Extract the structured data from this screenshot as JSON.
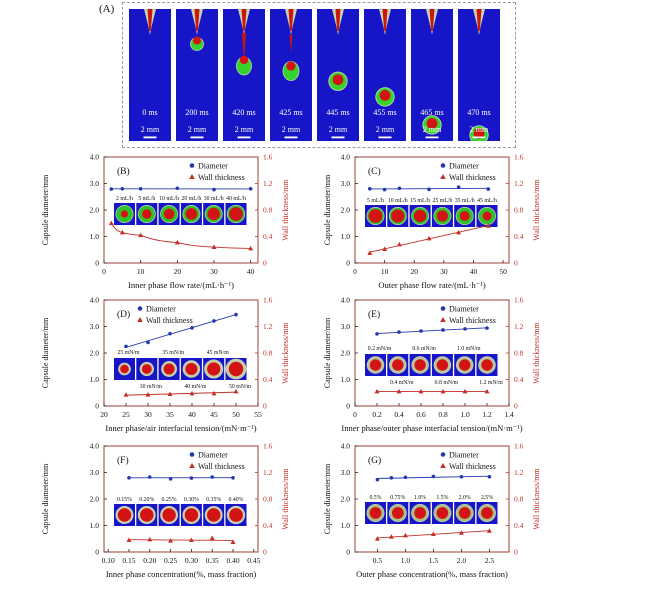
{
  "figure": {
    "panel_a": {
      "label": "(A)",
      "scale_label": "2 mm",
      "frames": [
        {
          "time": "0 ms",
          "stage": "empty"
        },
        {
          "time": "200 ms",
          "stage": "pendant"
        },
        {
          "time": "420 ms",
          "stage": "stretch"
        },
        {
          "time": "425 ms",
          "stage": "neck"
        },
        {
          "time": "445 ms",
          "stage": "free",
          "y": 0.52
        },
        {
          "time": "455 ms",
          "stage": "free",
          "y": 0.66
        },
        {
          "time": "465 ms",
          "stage": "free",
          "y": 0.91
        },
        {
          "time": "470 ms",
          "stage": "free",
          "y": 1.0
        }
      ]
    },
    "ylabel_left": "Capsule diameter/mm",
    "ylabel_right": "Wall thickness/mm",
    "legend": {
      "diameter": "Diameter",
      "wall": "Wall thickness"
    },
    "yticks_left": {
      "values": [
        0,
        1,
        2,
        3,
        4
      ],
      "labels": [
        "0",
        "1.0",
        "2.0",
        "3.0",
        "4.0"
      ]
    },
    "yticks_right": {
      "values": [
        0,
        0.4,
        0.8,
        1.2,
        1.6
      ],
      "labels": [
        "0",
        "0.4",
        "0.8",
        "1.2",
        "1.6"
      ]
    },
    "ylim_left": [
      0,
      4
    ],
    "ylim_right": [
      0,
      1.6
    ]
  },
  "chart_data": [
    {
      "type": "scatter",
      "letter": "(B)",
      "xlabel": "Inner phase flow rate/(mL·h⁻¹)",
      "xlim": [
        0,
        42
      ],
      "xticks": [
        0,
        10,
        20,
        30,
        40
      ],
      "xtick_labels": [
        "0",
        "10",
        "20",
        "30",
        "40"
      ],
      "x": [
        2,
        5,
        10,
        20,
        30,
        40
      ],
      "diameter": [
        2.79,
        2.8,
        2.8,
        2.82,
        2.77,
        2.8
      ],
      "wall": [
        0.6,
        0.46,
        0.42,
        0.31,
        0.24,
        0.22
      ],
      "wall_fit": "curve",
      "legend_pos": "right",
      "inset": {
        "labels_top": [
          "2 mL/h",
          "5 mL/h",
          "10 mL/h",
          "20 mL/h",
          "30 mL/h",
          "40 mL/h"
        ],
        "labels_bottom": [],
        "y": 46,
        "ring": "#2fc32a",
        "cores": [
          0.42,
          0.55,
          0.62,
          0.68,
          0.72,
          0.78
        ],
        "radii": [
          8.6,
          8.6,
          8.6,
          8.6,
          8.6,
          8.8
        ]
      }
    },
    {
      "type": "scatter",
      "letter": "(C)",
      "xlabel": "Outer phase flow rate/(mL·h⁻¹)",
      "xlim": [
        0,
        52
      ],
      "xticks": [
        0,
        10,
        20,
        30,
        40,
        50
      ],
      "xtick_labels": [
        "0",
        "10",
        "20",
        "30",
        "40",
        "50"
      ],
      "x": [
        5,
        10,
        15,
        25,
        35,
        45
      ],
      "diameter": [
        2.8,
        2.77,
        2.82,
        2.78,
        2.86,
        2.79
      ],
      "wall": [
        0.15,
        0.21,
        0.28,
        0.37,
        0.46,
        0.56
      ],
      "wall_fit": "line",
      "legend_pos": "right",
      "inset": {
        "labels_top": [
          "5 mL/h",
          "10 mL/h",
          "15 mL/h",
          "25 mL/h",
          "35 mL/h",
          "45 mL/h"
        ],
        "labels_bottom": [],
        "y": 48,
        "ring": "#2fc32a",
        "cores": [
          0.8,
          0.77,
          0.72,
          0.65,
          0.58,
          0.52
        ],
        "radii": [
          8.6,
          8.6,
          8.6,
          8.6,
          8.6,
          8.6
        ]
      }
    },
    {
      "type": "scatter",
      "letter": "(D)",
      "xlabel": "Inner phase/air interfacial tension/(mN·m⁻¹)",
      "xlim": [
        20,
        55
      ],
      "xticks": [
        20,
        25,
        30,
        35,
        40,
        45,
        50,
        55
      ],
      "xtick_labels": [
        "20",
        "25",
        "30",
        "35",
        "40",
        "45",
        "50",
        "55"
      ],
      "x": [
        25,
        30,
        35,
        40,
        45,
        50
      ],
      "diameter": [
        2.25,
        2.4,
        2.73,
        2.95,
        3.21,
        3.45
      ],
      "wall": [
        0.17,
        0.17,
        0.18,
        0.19,
        0.19,
        0.22
      ],
      "wall_fit": "line",
      "legend_pos": "left",
      "inset": {
        "labels_top": [
          "25 mN/m",
          "35 mN/m",
          "45 mN/m"
        ],
        "labels_bottom": [
          "30 mN/m",
          "40 mN/m",
          "50 mN/m"
        ],
        "y": 58,
        "ring": "#c4cda6",
        "cores": [
          0.72,
          0.72,
          0.72,
          0.72,
          0.72,
          0.72
        ],
        "radii": [
          6.0,
          6.8,
          7.6,
          8.4,
          9.2,
          10.0
        ]
      }
    },
    {
      "type": "scatter",
      "letter": "(E)",
      "xlabel": "Inner phase/outer phase interfacial tension/(mN·m⁻¹)",
      "xlim": [
        0,
        1.4
      ],
      "xticks": [
        0,
        0.2,
        0.4,
        0.6,
        0.8,
        1.0,
        1.2,
        1.4
      ],
      "xtick_labels": [
        "0",
        "0.2",
        "0.4",
        "0.6",
        "0.8",
        "1.0",
        "1.2",
        "1.4"
      ],
      "x": [
        0.2,
        0.4,
        0.6,
        0.8,
        1.0,
        1.2
      ],
      "diameter": [
        2.72,
        2.79,
        2.83,
        2.87,
        2.91,
        2.94
      ],
      "wall": [
        0.22,
        0.22,
        0.22,
        0.22,
        0.22,
        0.22
      ],
      "wall_fit": "line",
      "legend_pos": "right",
      "inset": {
        "labels_top": [
          "0.2 mN/m",
          "0.6 mN/m",
          "1.0 mN/m"
        ],
        "labels_bottom": [
          "0.4 mN/m",
          "0.8 mN/m",
          "1.2 mN/m"
        ],
        "y": 54,
        "ring": "#b9c59b",
        "cores": [
          0.68,
          0.68,
          0.68,
          0.68,
          0.68,
          0.68
        ],
        "radii": [
          8.4,
          8.4,
          8.4,
          8.4,
          8.4,
          8.4
        ]
      }
    },
    {
      "type": "scatter",
      "letter": "(F)",
      "xlabel": "Inner phase concentration(%, mass fraction)",
      "xlim": [
        0.09,
        0.46
      ],
      "xticks": [
        0.1,
        0.15,
        0.2,
        0.25,
        0.3,
        0.35,
        0.4,
        0.45
      ],
      "xtick_labels": [
        "0.10",
        "0.15",
        "0.20",
        "0.25",
        "0.30",
        "0.35",
        "0.40",
        "0.45"
      ],
      "x": [
        0.15,
        0.2,
        0.25,
        0.3,
        0.35,
        0.4
      ],
      "diameter": [
        2.8,
        2.83,
        2.76,
        2.79,
        2.83,
        2.8
      ],
      "wall": [
        0.18,
        0.19,
        0.17,
        0.18,
        0.21,
        0.15
      ],
      "wall_fit": "line",
      "legend_pos": "right",
      "inset": {
        "labels_top": [
          "0.15%",
          "0.20%",
          "0.25%",
          "0.30%",
          "0.35%",
          "0.40%"
        ],
        "labels_bottom": [],
        "y": 58,
        "ring": "#c8d0ac",
        "cores": [
          0.78,
          0.78,
          0.78,
          0.78,
          0.78,
          0.78
        ],
        "radii": [
          8.6,
          8.6,
          8.6,
          8.6,
          8.6,
          8.8
        ]
      }
    },
    {
      "type": "scatter",
      "letter": "(G)",
      "xlabel": "Outer phase concentration(%, mass fraction)",
      "xlim": [
        0.1,
        2.85
      ],
      "xticks": [
        0.5,
        1.0,
        1.5,
        2.0,
        2.5
      ],
      "xtick_labels": [
        "0.5",
        "1.0",
        "1.5",
        "2.0",
        "2.5"
      ],
      "x": [
        0.5,
        0.75,
        1.0,
        1.5,
        2.0,
        2.5
      ],
      "diameter": [
        2.73,
        2.8,
        2.82,
        2.85,
        2.84,
        2.84
      ],
      "wall": [
        0.2,
        0.23,
        0.25,
        0.27,
        0.29,
        0.32
      ],
      "wall_fit": "line",
      "legend_pos": "right",
      "inset": {
        "labels_top": [
          "0.5%",
          "0.75%",
          "1.0%",
          "1.5%",
          "2.0%",
          "2.5%"
        ],
        "labels_bottom": [],
        "y": 56,
        "ring": "#a9bd85",
        "cores": [
          0.68,
          0.68,
          0.68,
          0.68,
          0.68,
          0.68
        ],
        "radii": [
          8.6,
          8.6,
          8.6,
          8.6,
          8.6,
          8.6
        ]
      }
    }
  ],
  "colors": {
    "frame": "#9e4038",
    "blue": "#2438ad",
    "red": "#c23128",
    "axis_dark": "#222222",
    "strip_blue": "#1616c8",
    "green": "#35d42c",
    "core_red": "#d41414",
    "nozzle_pale": "#c9d2ae",
    "white": "#ffffff"
  }
}
